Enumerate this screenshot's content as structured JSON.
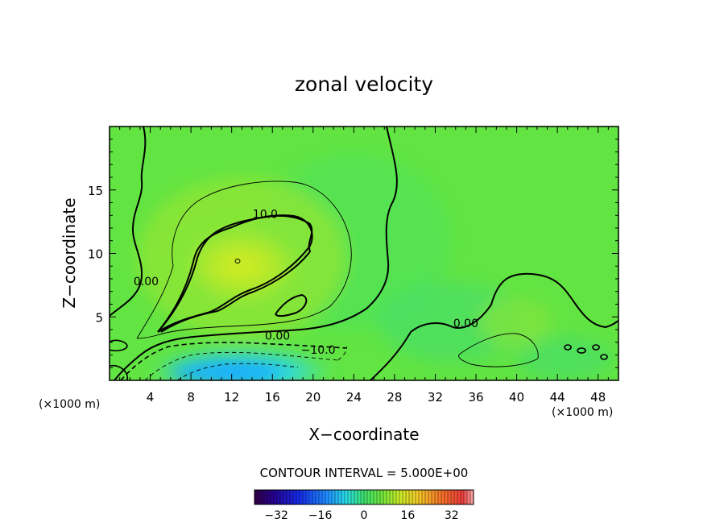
{
  "chart_data": {
    "type": "heatmap",
    "title": "zonal velocity",
    "xlabel": "X−coordinate",
    "ylabel": "Z−coordinate",
    "x_unit_label": "(×1000 m)",
    "z_unit_label": "(×1000 m)",
    "xlim": [
      0,
      50
    ],
    "zlim": [
      0,
      20
    ],
    "x_ticks": [
      4,
      8,
      12,
      16,
      20,
      24,
      28,
      32,
      36,
      40,
      44,
      48
    ],
    "z_ticks": [
      5,
      10,
      15
    ],
    "contour_labels": [
      {
        "text": "10.0",
        "x": 15.3,
        "z": 12.8
      },
      {
        "text": "0.00",
        "x": 3.6,
        "z": 7.5
      },
      {
        "text": "0.00",
        "x": 16.5,
        "z": 3.2
      },
      {
        "text": "−10.0",
        "x": 20.5,
        "z": 2.1
      },
      {
        "text": "0.00",
        "x": 35.0,
        "z": 4.2
      }
    ],
    "contour_interval_label": "CONTOUR INTERVAL = 5.000E+00",
    "colorbar": {
      "min": -40,
      "max": 40,
      "ticks": [
        "−32",
        "−16",
        "0",
        "16",
        "32"
      ],
      "tick_values": [
        -32,
        -16,
        0,
        16,
        32
      ]
    }
  }
}
